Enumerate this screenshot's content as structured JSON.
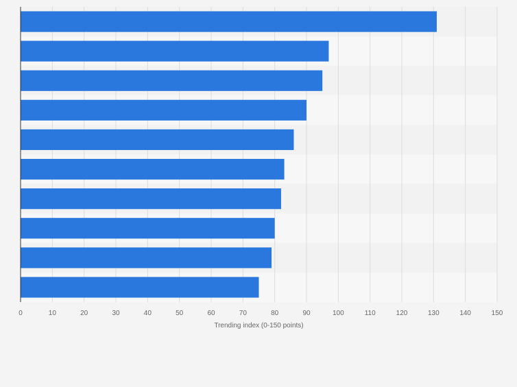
{
  "colors": {
    "bar": "#2a77dd",
    "band_light": "#f7f7f7",
    "band_dark": "#f2f2f2",
    "grid": "#dcdcdc",
    "axis": "#333333",
    "tick_text": "#666666",
    "background": "#f4f4f4"
  },
  "chart_data": {
    "type": "bar",
    "orientation": "horizontal",
    "categories": [
      "",
      "",
      "",
      "",
      "",
      "",
      "",
      "",
      "",
      ""
    ],
    "values": [
      131,
      97,
      95,
      90,
      86,
      83,
      82,
      80,
      79,
      75
    ],
    "xlabel": "Trending index (0-150 points)",
    "ylabel": "",
    "xlim": [
      0,
      150
    ],
    "xticks": [
      "0",
      "10",
      "20",
      "30",
      "40",
      "50",
      "60",
      "70",
      "80",
      "90",
      "100",
      "110",
      "120",
      "130",
      "140",
      "150"
    ],
    "grid": true,
    "legend": "none"
  }
}
